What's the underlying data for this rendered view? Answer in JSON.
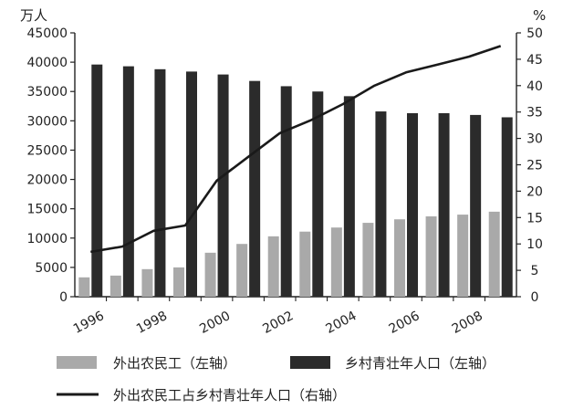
{
  "chart_data": {
    "type": "bar",
    "categories": [
      "1996",
      "1997",
      "1998",
      "1999",
      "2000",
      "2001",
      "2002",
      "2003",
      "2004",
      "2005",
      "2006",
      "2007",
      "2008",
      "2009"
    ],
    "x_tick_labels": [
      "1996",
      "1998",
      "2000",
      "2002",
      "2004",
      "2006",
      "2008"
    ],
    "left_axis": {
      "unit": "万人",
      "ylim": [
        0,
        45000
      ],
      "ticks": [
        0,
        5000,
        10000,
        15000,
        20000,
        25000,
        30000,
        35000,
        40000,
        45000
      ]
    },
    "right_axis": {
      "unit": "%",
      "ylim": [
        0,
        50
      ],
      "ticks": [
        0,
        5,
        10,
        15,
        20,
        25,
        30,
        35,
        40,
        45,
        50
      ]
    },
    "series": [
      {
        "name": "外出农民工（左轴）",
        "kind": "bar",
        "axis": "left",
        "color": "#a9a9a9",
        "values": [
          3300,
          3600,
          4700,
          5000,
          7500,
          9000,
          10300,
          11100,
          11800,
          12600,
          13200,
          13700,
          14000,
          14500
        ]
      },
      {
        "name": "乡村青壮年人口（左轴）",
        "kind": "bar",
        "axis": "left",
        "color": "#2b2b2b",
        "values": [
          39600,
          39300,
          38800,
          38400,
          37900,
          36800,
          35900,
          35000,
          34200,
          31600,
          31300,
          31300,
          31000,
          30600
        ]
      },
      {
        "name": "外出农民工占乡村青壮年人口（右轴）",
        "kind": "line",
        "axis": "right",
        "color": "#1a1a1a",
        "values": [
          8.5,
          9.5,
          12.5,
          13.5,
          22,
          26.5,
          31,
          33.5,
          36.5,
          40,
          42.5,
          44,
          45.5,
          47.5
        ]
      }
    ],
    "legend": [
      {
        "label": "外出农民工（左轴）",
        "symbol": "bar",
        "color": "#a9a9a9"
      },
      {
        "label": "乡村青壮年人口（左轴）",
        "symbol": "bar",
        "color": "#2b2b2b"
      },
      {
        "label": "外出农民工占乡村青壮年人口（右轴）",
        "symbol": "line",
        "color": "#1a1a1a"
      }
    ],
    "legend_position": "bottom",
    "grid": false
  }
}
